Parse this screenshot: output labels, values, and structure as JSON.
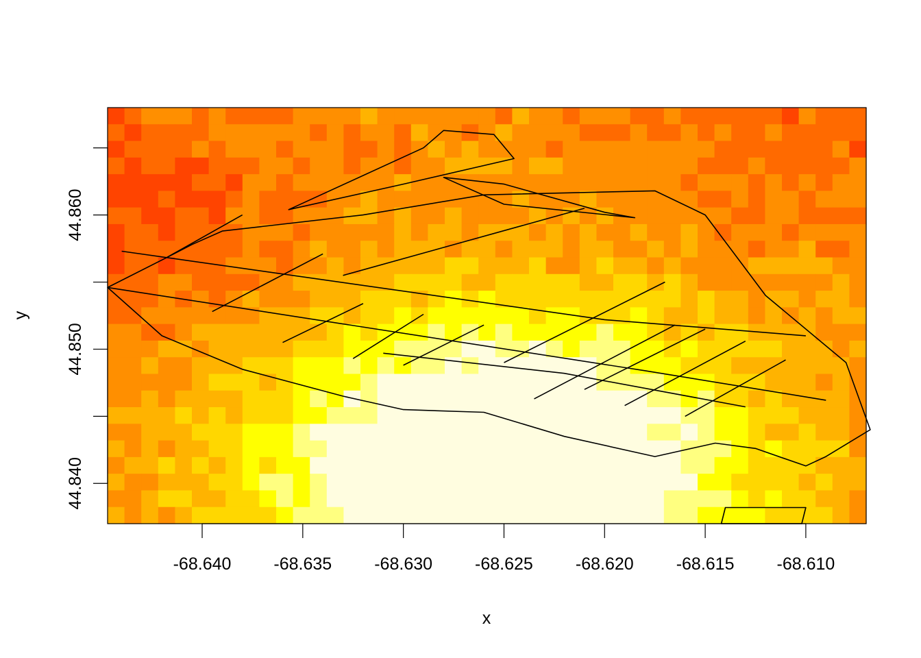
{
  "chart_data": {
    "type": "heatmap",
    "title": "",
    "xlabel": "x",
    "ylabel": "y",
    "xlim": [
      -68.6447,
      -68.607
    ],
    "ylim": [
      44.837,
      44.868
    ],
    "x_ticks": [
      -68.64,
      -68.635,
      -68.63,
      -68.625,
      -68.62,
      -68.615,
      -68.61
    ],
    "x_tick_labels": [
      "-68.640",
      "-68.635",
      "-68.630",
      "-68.625",
      "-68.620",
      "-68.615",
      "-68.610"
    ],
    "y_ticks": [
      44.84,
      44.845,
      44.85,
      44.855,
      44.86,
      44.865
    ],
    "y_tick_labels": [
      "44.840",
      "",
      "44.850",
      "",
      "44.860",
      ""
    ],
    "grid": false,
    "legend": "none",
    "color_ramp": [
      "#ff0000",
      "#ff4400",
      "#ff6a00",
      "#ff8f00",
      "#ffb300",
      "#ffd700",
      "#ffff00",
      "#ffff80",
      "#fffde0"
    ],
    "raster": {
      "ncols": 45,
      "nrows": 25,
      "hot_center": [
        -68.625,
        44.8405
      ],
      "cold_center": [
        -68.644,
        44.8605
      ],
      "relative_values_note": "cell values are relative intensities 0-8 indexing color_ramp"
    },
    "overlay_polygons": [
      [
        [
          -68.6447,
          44.8546
        ],
        [
          -68.6418,
          44.8568
        ],
        [
          -68.6405,
          44.8578
        ],
        [
          -68.639,
          44.8588
        ],
        [
          -68.632,
          44.86
        ],
        [
          -68.626,
          44.8615
        ],
        [
          -68.6175,
          44.8618
        ],
        [
          -68.615,
          44.86
        ],
        [
          -68.612,
          44.854
        ],
        [
          -68.608,
          44.849
        ],
        [
          -68.6068,
          44.844
        ],
        [
          -68.609,
          44.842
        ],
        [
          -68.61,
          44.8413
        ],
        [
          -68.6125,
          44.8426
        ],
        [
          -68.6145,
          44.843
        ],
        [
          -68.6175,
          44.842
        ],
        [
          -68.622,
          44.8435
        ],
        [
          -68.626,
          44.8453
        ],
        [
          -68.63,
          44.8455
        ],
        [
          -68.633,
          44.8465
        ],
        [
          -68.638,
          44.8485
        ],
        [
          -68.642,
          44.851
        ],
        [
          -68.6447,
          44.8546
        ]
      ],
      [
        [
          -68.6357,
          44.8604
        ],
        [
          -68.629,
          44.865
        ],
        [
          -68.628,
          44.8663
        ],
        [
          -68.6255,
          44.866
        ],
        [
          -68.6245,
          44.8642
        ],
        [
          -68.63,
          44.8623
        ],
        [
          -68.6357,
          44.8604
        ]
      ],
      [
        [
          -68.628,
          44.8628
        ],
        [
          -68.625,
          44.8623
        ],
        [
          -68.62,
          44.8602
        ],
        [
          -68.6185,
          44.8598
        ],
        [
          -68.625,
          44.8608
        ],
        [
          -68.628,
          44.8628
        ]
      ],
      [
        [
          -68.614,
          44.8382
        ],
        [
          -68.61,
          44.8382
        ],
        [
          -68.6102,
          44.837
        ],
        [
          -68.6142,
          44.837
        ],
        [
          -68.614,
          44.8382
        ]
      ]
    ],
    "overlay_lines": [
      [
        [
          -68.644,
          44.8573
        ],
        [
          -68.62,
          44.8522
        ],
        [
          -68.61,
          44.851
        ]
      ],
      [
        [
          -68.6447,
          44.8546
        ],
        [
          -68.618,
          44.8484
        ],
        [
          -68.609,
          44.8462
        ]
      ],
      [
        [
          -68.631,
          44.8497
        ],
        [
          -68.622,
          44.8482
        ],
        [
          -68.613,
          44.8457
        ]
      ],
      [
        [
          -68.6418,
          44.8568
        ],
        [
          -68.638,
          44.86
        ]
      ],
      [
        [
          -68.6395,
          44.8528
        ],
        [
          -68.634,
          44.8571
        ]
      ],
      [
        [
          -68.636,
          44.8505
        ],
        [
          -68.632,
          44.8534
        ]
      ],
      [
        [
          -68.6325,
          44.8493
        ],
        [
          -68.629,
          44.8526
        ]
      ],
      [
        [
          -68.63,
          44.8488
        ],
        [
          -68.626,
          44.8518
        ]
      ],
      [
        [
          -68.625,
          44.849
        ],
        [
          -68.617,
          44.855
        ]
      ],
      [
        [
          -68.6235,
          44.8463
        ],
        [
          -68.6165,
          44.8518
        ]
      ],
      [
        [
          -68.621,
          44.847
        ],
        [
          -68.615,
          44.8515
        ]
      ],
      [
        [
          -68.619,
          44.8458
        ],
        [
          -68.613,
          44.8506
        ]
      ],
      [
        [
          -68.616,
          44.845
        ],
        [
          -68.611,
          44.8492
        ]
      ],
      [
        [
          -68.633,
          44.8555
        ],
        [
          -68.621,
          44.8605
        ]
      ]
    ]
  }
}
